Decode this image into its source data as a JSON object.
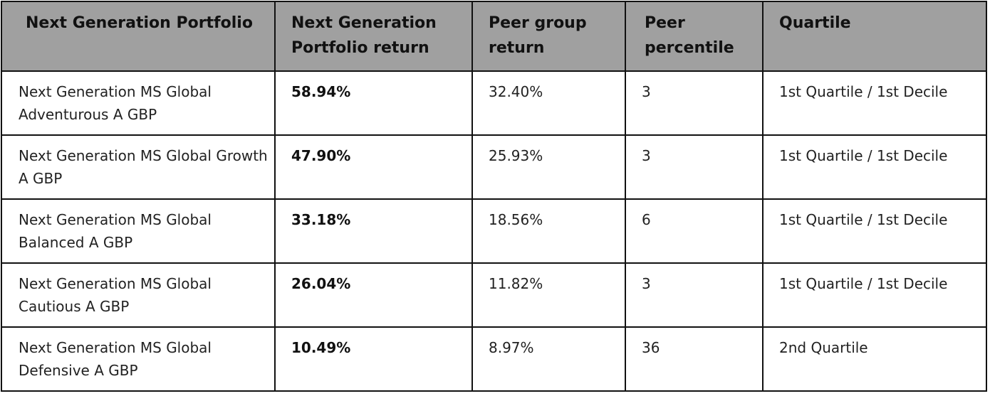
{
  "table": {
    "headers": [
      "Next Generation Portfolio",
      "Next Generation Portfolio return",
      "Peer group return",
      "Peer percentile",
      "Quartile"
    ],
    "rows": [
      {
        "portfolio": "Next Generation MS Global Adventurous A GBP",
        "return": "58.94%",
        "peer_return": "32.40%",
        "peer_percentile": "3",
        "quartile": "1st Quartile / 1st Decile"
      },
      {
        "portfolio": "Next Generation MS Global Growth A GBP",
        "return": "47.90%",
        "peer_return": "25.93%",
        "peer_percentile": "3",
        "quartile": "1st Quartile / 1st Decile"
      },
      {
        "portfolio": "Next Generation MS Global Balanced A GBP",
        "return": "33.18%",
        "peer_return": "18.56%",
        "peer_percentile": "6",
        "quartile": "1st Quartile / 1st Decile"
      },
      {
        "portfolio": "Next Generation MS Global Cautious A GBP",
        "return": "26.04%",
        "peer_return": "11.82%",
        "peer_percentile": "3",
        "quartile": "1st Quartile / 1st Decile"
      },
      {
        "portfolio": "Next Generation MS Global Defensive A GBP",
        "return": "10.49%",
        "peer_return": "8.97%",
        "peer_percentile": "36",
        "quartile": "2nd Quartile"
      }
    ]
  },
  "colors": {
    "header_background": "#a0a0a0",
    "border": "#111111"
  }
}
